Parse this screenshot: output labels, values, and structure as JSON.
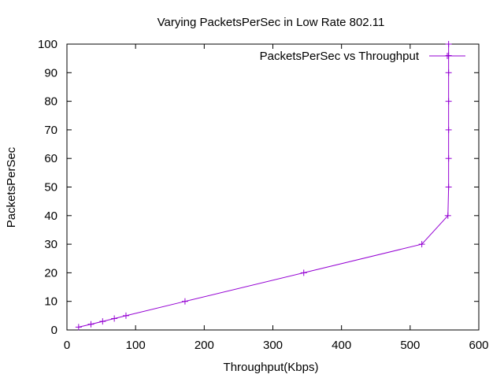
{
  "chart_data": {
    "type": "line",
    "title": "Varying PacketsPerSec in Low Rate 802.11",
    "xlabel": "Throughput(Kbps)",
    "ylabel": "PacketsPerSec",
    "xlim": [
      0,
      600
    ],
    "ylim": [
      0,
      100
    ],
    "x_ticks": [
      0,
      100,
      200,
      300,
      400,
      500,
      600
    ],
    "y_ticks": [
      0,
      10,
      20,
      30,
      40,
      50,
      60,
      70,
      80,
      90,
      100
    ],
    "grid": false,
    "legend_position": "top-right",
    "series": [
      {
        "name": "PacketsPerSec vs Throughput",
        "color": "#9400d3",
        "marker": "plus",
        "x": [
          17,
          35,
          52,
          69,
          86,
          172,
          345,
          517,
          555,
          556,
          556,
          556,
          556,
          556,
          556,
          556
        ],
        "y": [
          1,
          2,
          3,
          4,
          5,
          10,
          20,
          30,
          40,
          50,
          60,
          70,
          80,
          90,
          96,
          100
        ]
      }
    ]
  }
}
